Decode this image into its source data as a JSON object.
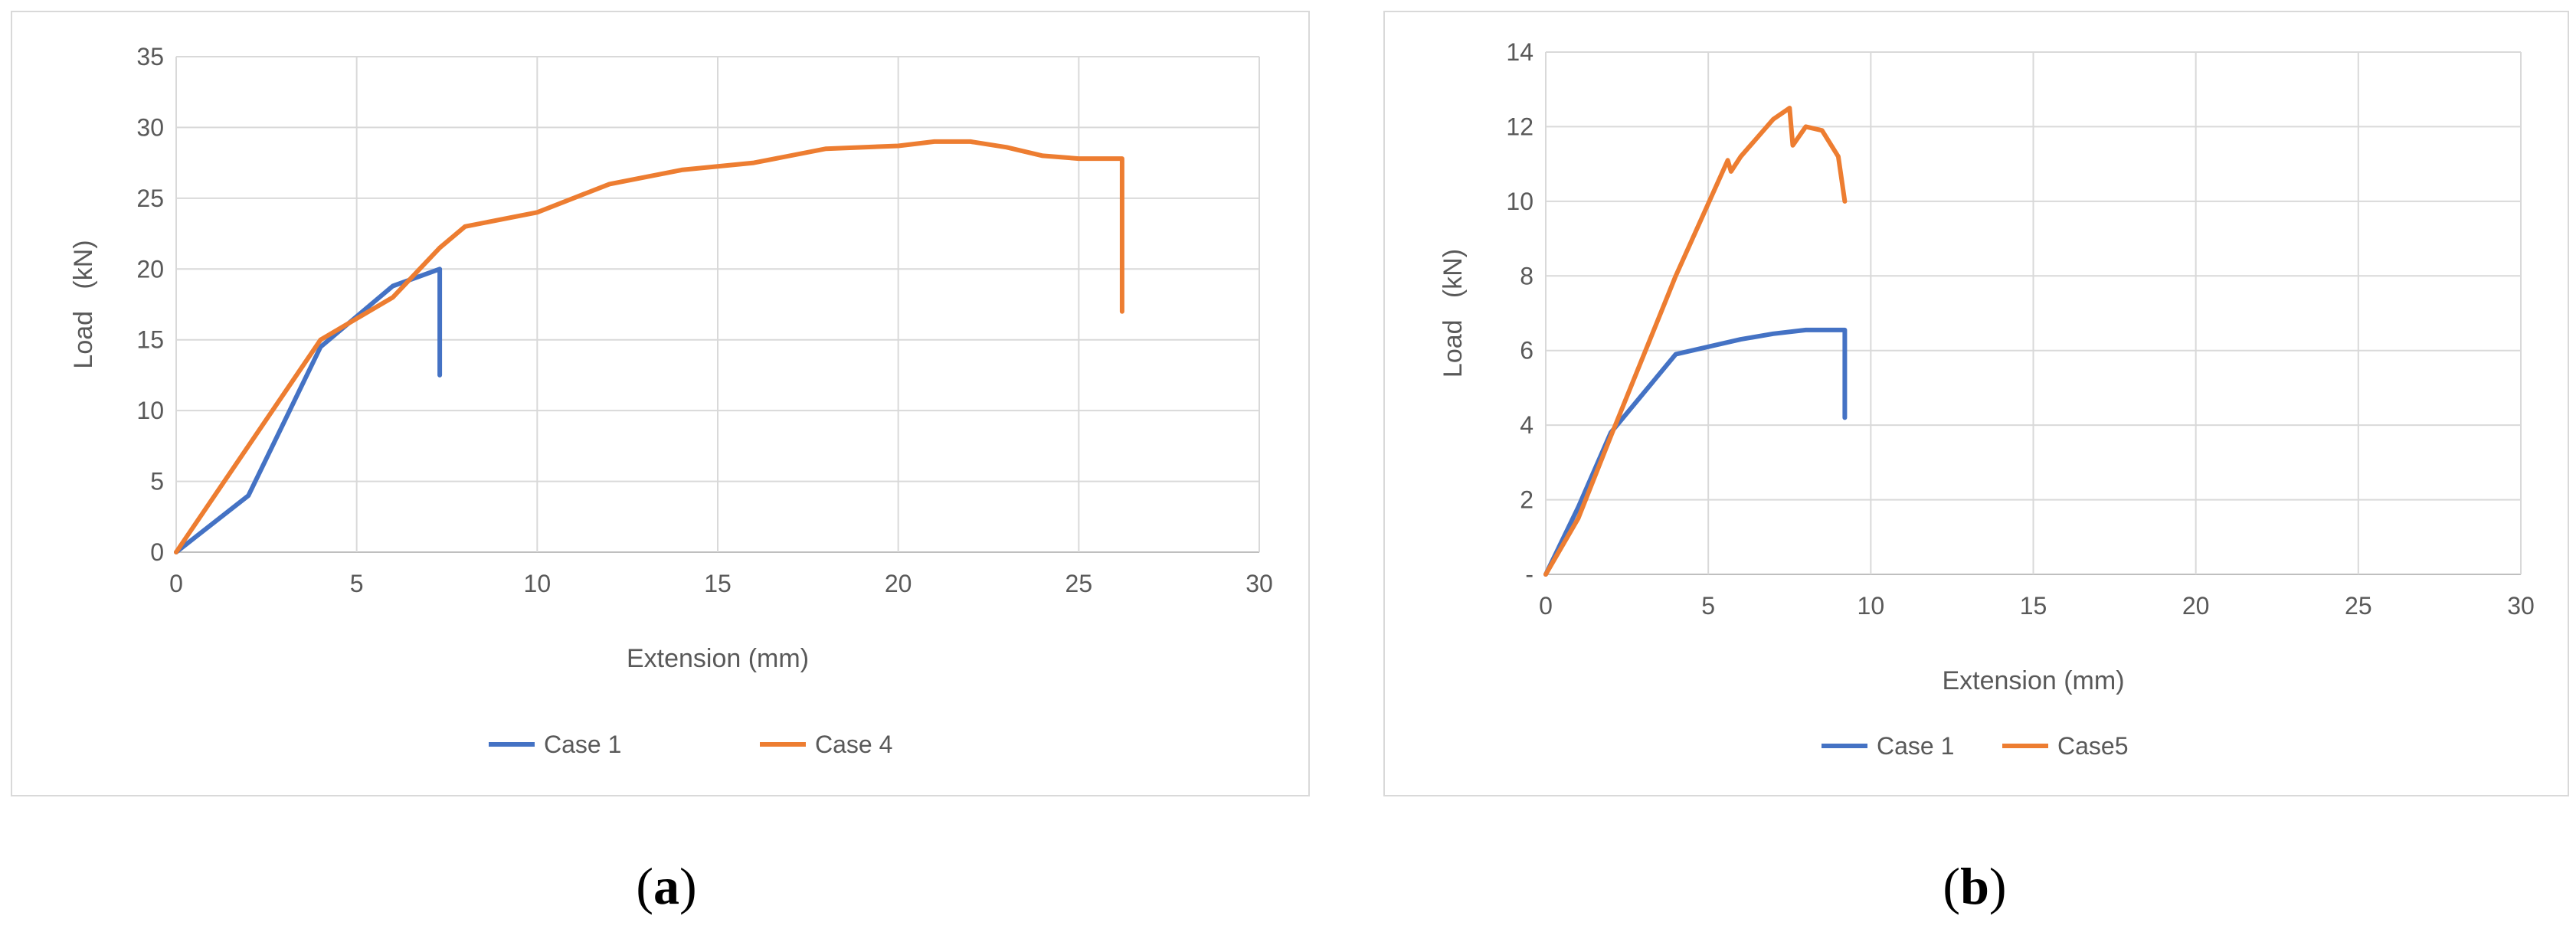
{
  "colors": {
    "series1": "#4472c4",
    "series2": "#ed7d31",
    "grid": "#d9d9d9",
    "text": "#595959"
  },
  "captions": {
    "a": "a",
    "b": "b"
  },
  "chart_data": [
    {
      "type": "line",
      "title": "",
      "xlabel": "Extension (mm)",
      "ylabel": "Load   (kN)",
      "xlim": [
        0,
        30
      ],
      "ylim": [
        0,
        35
      ],
      "xticks": [
        0,
        5,
        10,
        15,
        20,
        25,
        30
      ],
      "yticks": [
        0,
        5,
        10,
        15,
        20,
        25,
        30,
        35
      ],
      "xtick_labels": [
        "0",
        "5",
        "10",
        "15",
        "20",
        "25",
        "30"
      ],
      "ytick_labels": [
        "0",
        "5",
        "10",
        "15",
        "20",
        "25",
        "30",
        "35"
      ],
      "grid": true,
      "legend_position": "bottom",
      "series": [
        {
          "name": "Case 1",
          "x": [
            0,
            2,
            4,
            6,
            7.3,
            7.3
          ],
          "y": [
            0,
            4,
            14.5,
            18.8,
            20,
            12.5
          ]
        },
        {
          "name": "Case 4",
          "x": [
            0,
            4,
            6,
            7.3,
            8,
            10,
            12,
            14,
            16,
            18,
            20,
            21,
            22,
            23,
            24,
            25,
            26.2,
            26.2
          ],
          "y": [
            0,
            15,
            18,
            21.5,
            23,
            24,
            26,
            27,
            27.5,
            28.5,
            28.7,
            29,
            29,
            28.6,
            28,
            27.8,
            27.8,
            17
          ]
        }
      ]
    },
    {
      "type": "line",
      "title": "",
      "xlabel": "Extension (mm)",
      "ylabel": "Load   (kN)",
      "xlim": [
        0,
        30
      ],
      "ylim": [
        0,
        14
      ],
      "xticks": [
        0,
        5,
        10,
        15,
        20,
        25,
        30
      ],
      "yticks": [
        0,
        2,
        4,
        6,
        8,
        10,
        12,
        14
      ],
      "xtick_labels": [
        "0",
        "5",
        "10",
        "15",
        "20",
        "25",
        "30"
      ],
      "ytick_labels": [
        "-",
        "2",
        "4",
        "6",
        "8",
        "10",
        "12",
        "14"
      ],
      "grid": true,
      "legend_position": "bottom",
      "series": [
        {
          "name": "Case 1",
          "x": [
            0,
            1,
            2,
            4,
            6,
            7,
            8,
            9.2,
            9.2
          ],
          "y": [
            0,
            1.8,
            3.8,
            5.9,
            6.3,
            6.45,
            6.55,
            6.55,
            4.2
          ]
        },
        {
          "name": "Case5",
          "x": [
            0,
            1,
            2,
            4,
            5.6,
            5.7,
            6,
            7,
            7.5,
            7.6,
            8,
            8.5,
            9,
            9.2
          ],
          "y": [
            0,
            1.5,
            3.7,
            8,
            11.1,
            10.8,
            11.2,
            12.2,
            12.5,
            11.5,
            12,
            11.9,
            11.2,
            10
          ]
        }
      ]
    }
  ]
}
